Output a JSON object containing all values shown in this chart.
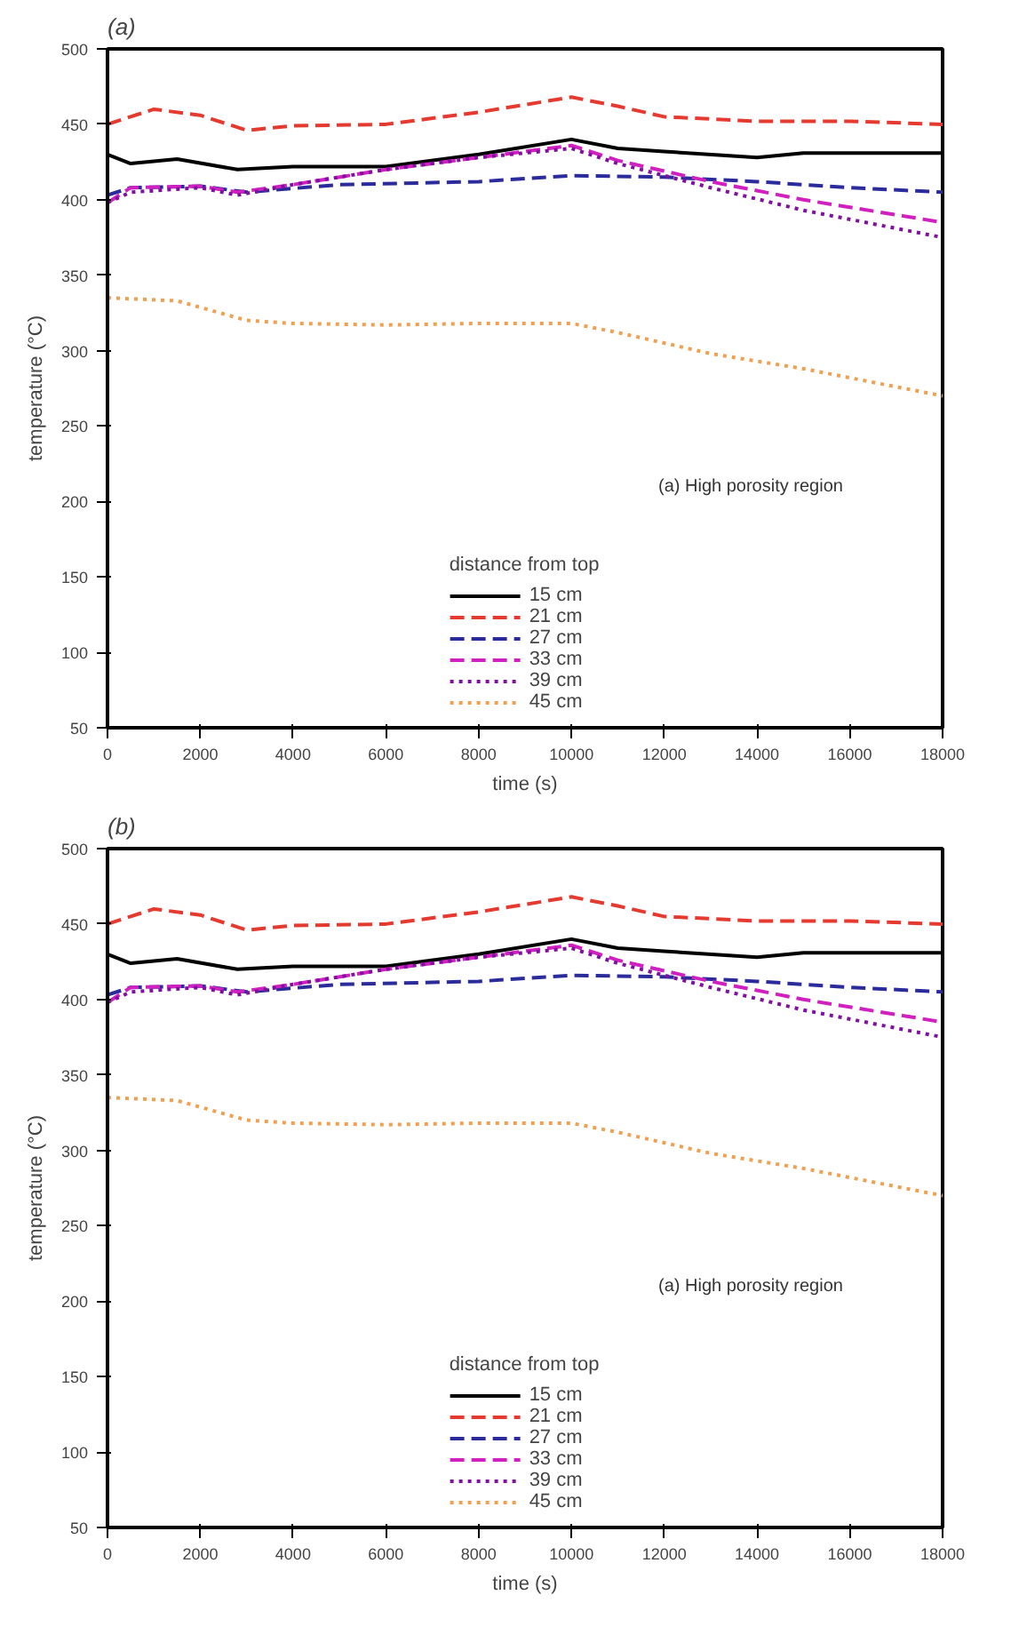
{
  "chart_data": [
    {
      "type": "line",
      "title": "(a)",
      "xlabel": "time (s)",
      "ylabel": "temperature (°C)",
      "legend_title": "distance from top",
      "legend": "bottom",
      "grid": false,
      "xlim": [
        0,
        18000
      ],
      "ylim": [
        50,
        500
      ],
      "xticks": [
        0,
        2000,
        4000,
        6000,
        8000,
        10000,
        12000,
        14000,
        16000,
        18000
      ],
      "yticks": [
        50,
        100,
        150,
        200,
        250,
        300,
        350,
        400,
        450,
        500
      ],
      "annotations": [
        "(a) High porosity region"
      ],
      "series": [
        {
          "name": "15 cm",
          "color": "#000000",
          "line_style": "solid",
          "x": [
            0,
            500,
            1500,
            2800,
            4000,
            6000,
            8000,
            10000,
            11000,
            12000,
            14000,
            15000,
            18000
          ],
          "values": [
            430,
            424,
            427,
            420,
            422,
            422,
            430,
            440,
            434,
            432,
            428,
            431,
            431
          ]
        },
        {
          "name": "21 cm",
          "color": "#e53a30",
          "line_style": "dashed",
          "x": [
            0,
            1000,
            2000,
            3000,
            4000,
            6000,
            8000,
            10000,
            11000,
            12000,
            14000,
            16000,
            18000
          ],
          "values": [
            450,
            460,
            456,
            446,
            449,
            450,
            458,
            468,
            462,
            455,
            452,
            452,
            450
          ]
        },
        {
          "name": "27 cm",
          "color": "#2b2b9b",
          "line_style": "dashed",
          "x": [
            0,
            500,
            2000,
            3000,
            5000,
            8000,
            10000,
            12000,
            14000,
            16000,
            18000
          ],
          "values": [
            403,
            408,
            409,
            405,
            410,
            412,
            416,
            415,
            412,
            408,
            405
          ]
        },
        {
          "name": "33 cm",
          "color": "#d020c0",
          "line_style": "dashed",
          "x": [
            0,
            500,
            2000,
            2800,
            4000,
            6000,
            8000,
            10000,
            11000,
            13000,
            15000,
            18000
          ],
          "values": [
            398,
            408,
            409,
            405,
            410,
            420,
            428,
            436,
            426,
            412,
            400,
            385
          ]
        },
        {
          "name": "39 cm",
          "color": "#8010a0",
          "line_style": "dotted",
          "x": [
            0,
            500,
            2000,
            2800,
            4000,
            6000,
            8000,
            10000,
            11000,
            13000,
            15000,
            18000
          ],
          "values": [
            398,
            405,
            408,
            403,
            410,
            420,
            428,
            434,
            424,
            408,
            393,
            375
          ]
        },
        {
          "name": "45 cm",
          "color": "#f0a050",
          "line_style": "dotted",
          "x": [
            0,
            1500,
            3000,
            4000,
            6000,
            8000,
            10000,
            11000,
            13000,
            15000,
            18000
          ],
          "values": [
            335,
            333,
            320,
            318,
            317,
            318,
            318,
            312,
            298,
            288,
            270
          ]
        }
      ]
    },
    {
      "type": "line",
      "title": "(b)",
      "xlabel": "time (s)",
      "ylabel": "temperature (°C)",
      "legend_title": "distance from top",
      "legend": "bottom",
      "grid": false,
      "xlim": [
        0,
        18000
      ],
      "ylim": [
        50,
        500
      ],
      "xticks": [
        0,
        2000,
        4000,
        6000,
        8000,
        10000,
        12000,
        14000,
        16000,
        18000
      ],
      "yticks": [
        50,
        100,
        150,
        200,
        250,
        300,
        350,
        400,
        450,
        500
      ],
      "annotations": [
        "(a) High porosity region"
      ],
      "series": [
        {
          "name": "15 cm",
          "color": "#000000",
          "line_style": "solid",
          "x": [
            0,
            500,
            1500,
            2800,
            4000,
            6000,
            8000,
            10000,
            11000,
            12000,
            14000,
            15000,
            18000
          ],
          "values": [
            430,
            424,
            427,
            420,
            422,
            422,
            430,
            440,
            434,
            432,
            428,
            431,
            431
          ]
        },
        {
          "name": "21 cm",
          "color": "#e53a30",
          "line_style": "dashed",
          "x": [
            0,
            1000,
            2000,
            3000,
            4000,
            6000,
            8000,
            10000,
            11000,
            12000,
            14000,
            16000,
            18000
          ],
          "values": [
            450,
            460,
            456,
            446,
            449,
            450,
            458,
            468,
            462,
            455,
            452,
            452,
            450
          ]
        },
        {
          "name": "27 cm",
          "color": "#2b2b9b",
          "line_style": "dashed",
          "x": [
            0,
            500,
            2000,
            3000,
            5000,
            8000,
            10000,
            12000,
            14000,
            16000,
            18000
          ],
          "values": [
            403,
            408,
            409,
            405,
            410,
            412,
            416,
            415,
            412,
            408,
            405
          ]
        },
        {
          "name": "33 cm",
          "color": "#d020c0",
          "line_style": "dashed",
          "x": [
            0,
            500,
            2000,
            2800,
            4000,
            6000,
            8000,
            10000,
            11000,
            13000,
            15000,
            18000
          ],
          "values": [
            398,
            408,
            409,
            405,
            410,
            420,
            428,
            436,
            426,
            412,
            400,
            385
          ]
        },
        {
          "name": "39 cm",
          "color": "#8010a0",
          "line_style": "dotted",
          "x": [
            0,
            500,
            2000,
            2800,
            4000,
            6000,
            8000,
            10000,
            11000,
            13000,
            15000,
            18000
          ],
          "values": [
            398,
            405,
            408,
            403,
            410,
            420,
            428,
            434,
            424,
            408,
            393,
            375
          ]
        },
        {
          "name": "45 cm",
          "color": "#f0a050",
          "line_style": "dotted",
          "x": [
            0,
            1500,
            3000,
            4000,
            6000,
            8000,
            10000,
            11000,
            13000,
            15000,
            18000
          ],
          "values": [
            335,
            333,
            320,
            318,
            317,
            318,
            318,
            312,
            298,
            288,
            270
          ]
        }
      ]
    }
  ]
}
